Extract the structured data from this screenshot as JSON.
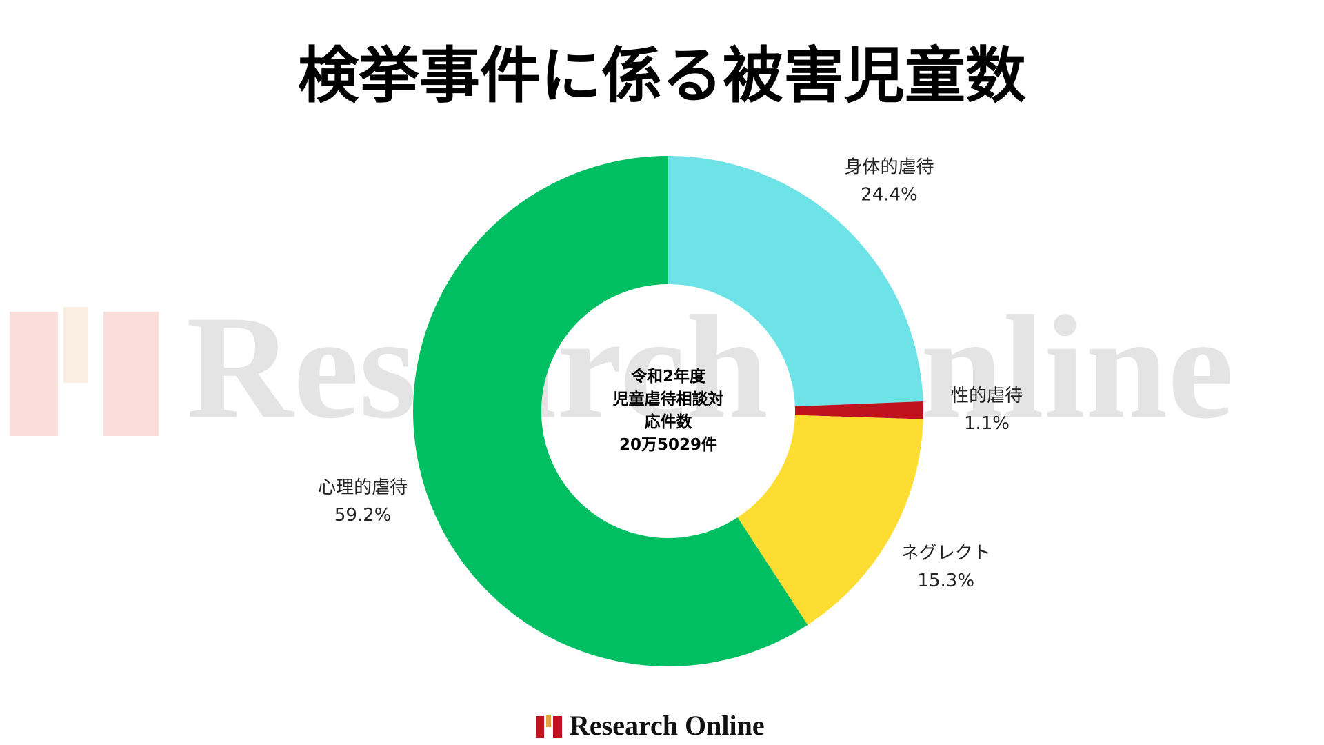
{
  "chart_data": {
    "type": "donut",
    "title": "検挙事件に係る被害児童数",
    "categories": [
      "身体的虐待",
      "性的虐待",
      "ネグレクト",
      "心理的虐待"
    ],
    "values": [
      24.4,
      1.1,
      15.3,
      59.2
    ],
    "value_labels": [
      "24.4%",
      "1.1%",
      "15.3%",
      "59.2%"
    ],
    "colors": [
      "#6de3e8",
      "#c0111f",
      "#fedd32",
      "#00bf63"
    ],
    "center_text": [
      "令和2年度",
      "児童虐待相談対",
      "応件数",
      "20万5029件"
    ],
    "watermark": "Research Online",
    "footer": "Research Online"
  }
}
